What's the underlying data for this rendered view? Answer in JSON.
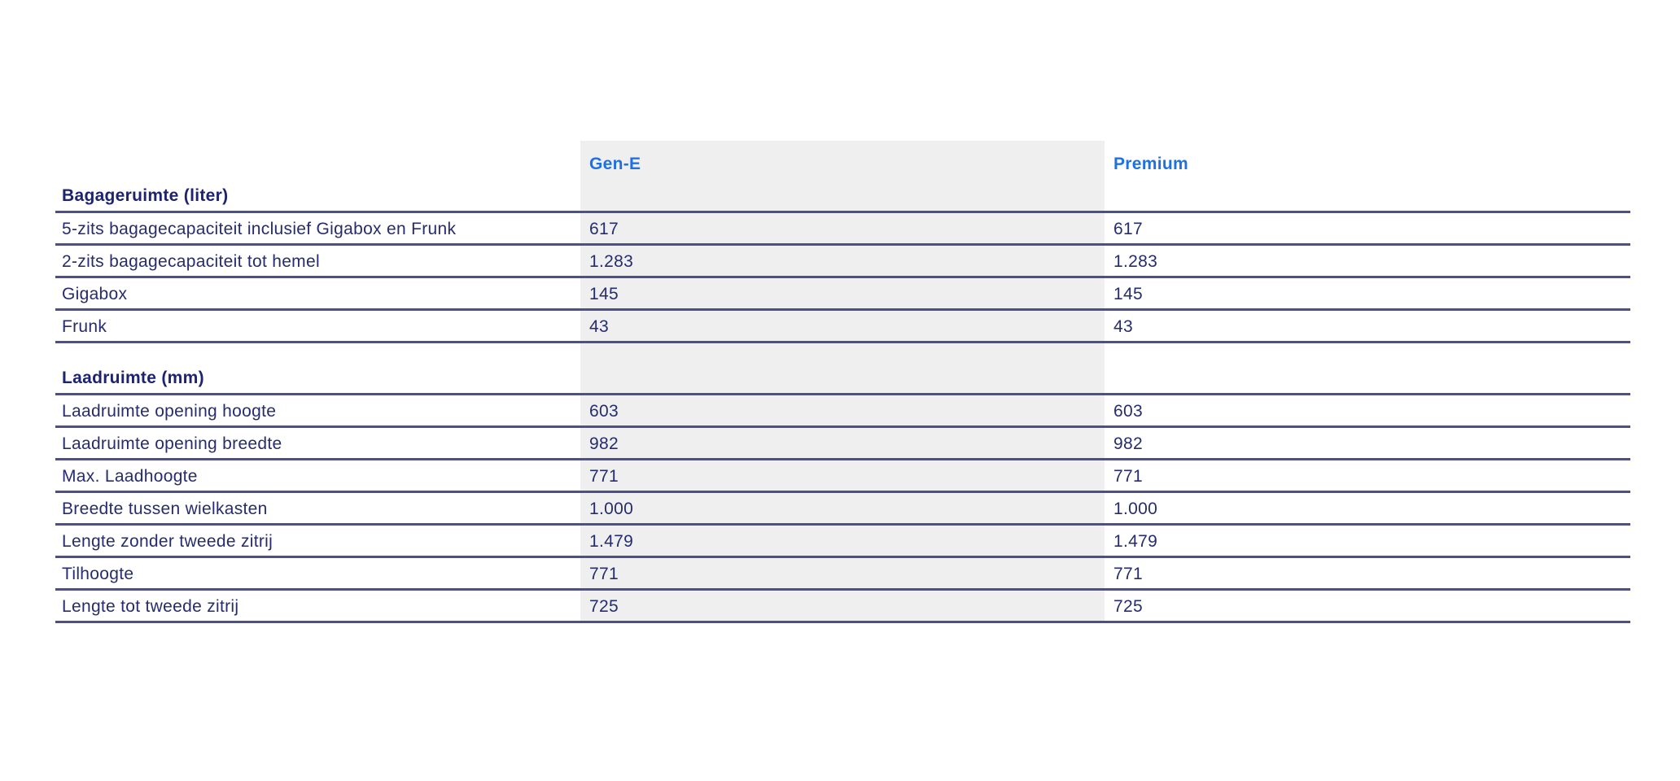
{
  "table": {
    "columns": [
      {
        "key": "gen_e",
        "label": "Gen-E"
      },
      {
        "key": "premium",
        "label": "Premium"
      }
    ],
    "colors": {
      "accent": "#1d71e2",
      "text": "#262c6d",
      "heading": "#1d2370",
      "divider": "#4a5185",
      "column_shade": "#efeff0"
    },
    "sections": [
      {
        "title": "Bagageruimte (liter)",
        "rows": [
          {
            "label": "5-zits bagagecapaciteit inclusief Gigabox en Frunk",
            "gen_e": "617",
            "premium": "617"
          },
          {
            "label": "2-zits bagagecapaciteit tot hemel",
            "gen_e": "1.283",
            "premium": "1.283"
          },
          {
            "label": "Gigabox",
            "gen_e": "145",
            "premium": "145"
          },
          {
            "label": "Frunk",
            "gen_e": "43",
            "premium": "43"
          }
        ]
      },
      {
        "title": "Laadruimte (mm)",
        "rows": [
          {
            "label": "Laadruimte opening hoogte",
            "gen_e": "603",
            "premium": "603"
          },
          {
            "label": "Laadruimte opening breedte",
            "gen_e": "982",
            "premium": "982"
          },
          {
            "label": "Max. Laadhoogte",
            "gen_e": "771",
            "premium": "771"
          },
          {
            "label": "Breedte tussen wielkasten",
            "gen_e": "1.000",
            "premium": "1.000"
          },
          {
            "label": "Lengte zonder tweede zitrij",
            "gen_e": "1.479",
            "premium": "1.479"
          },
          {
            "label": "Tilhoogte",
            "gen_e": "771",
            "premium": "771"
          },
          {
            "label": "Lengte tot tweede zitrij",
            "gen_e": "725",
            "premium": "725"
          }
        ]
      }
    ]
  }
}
